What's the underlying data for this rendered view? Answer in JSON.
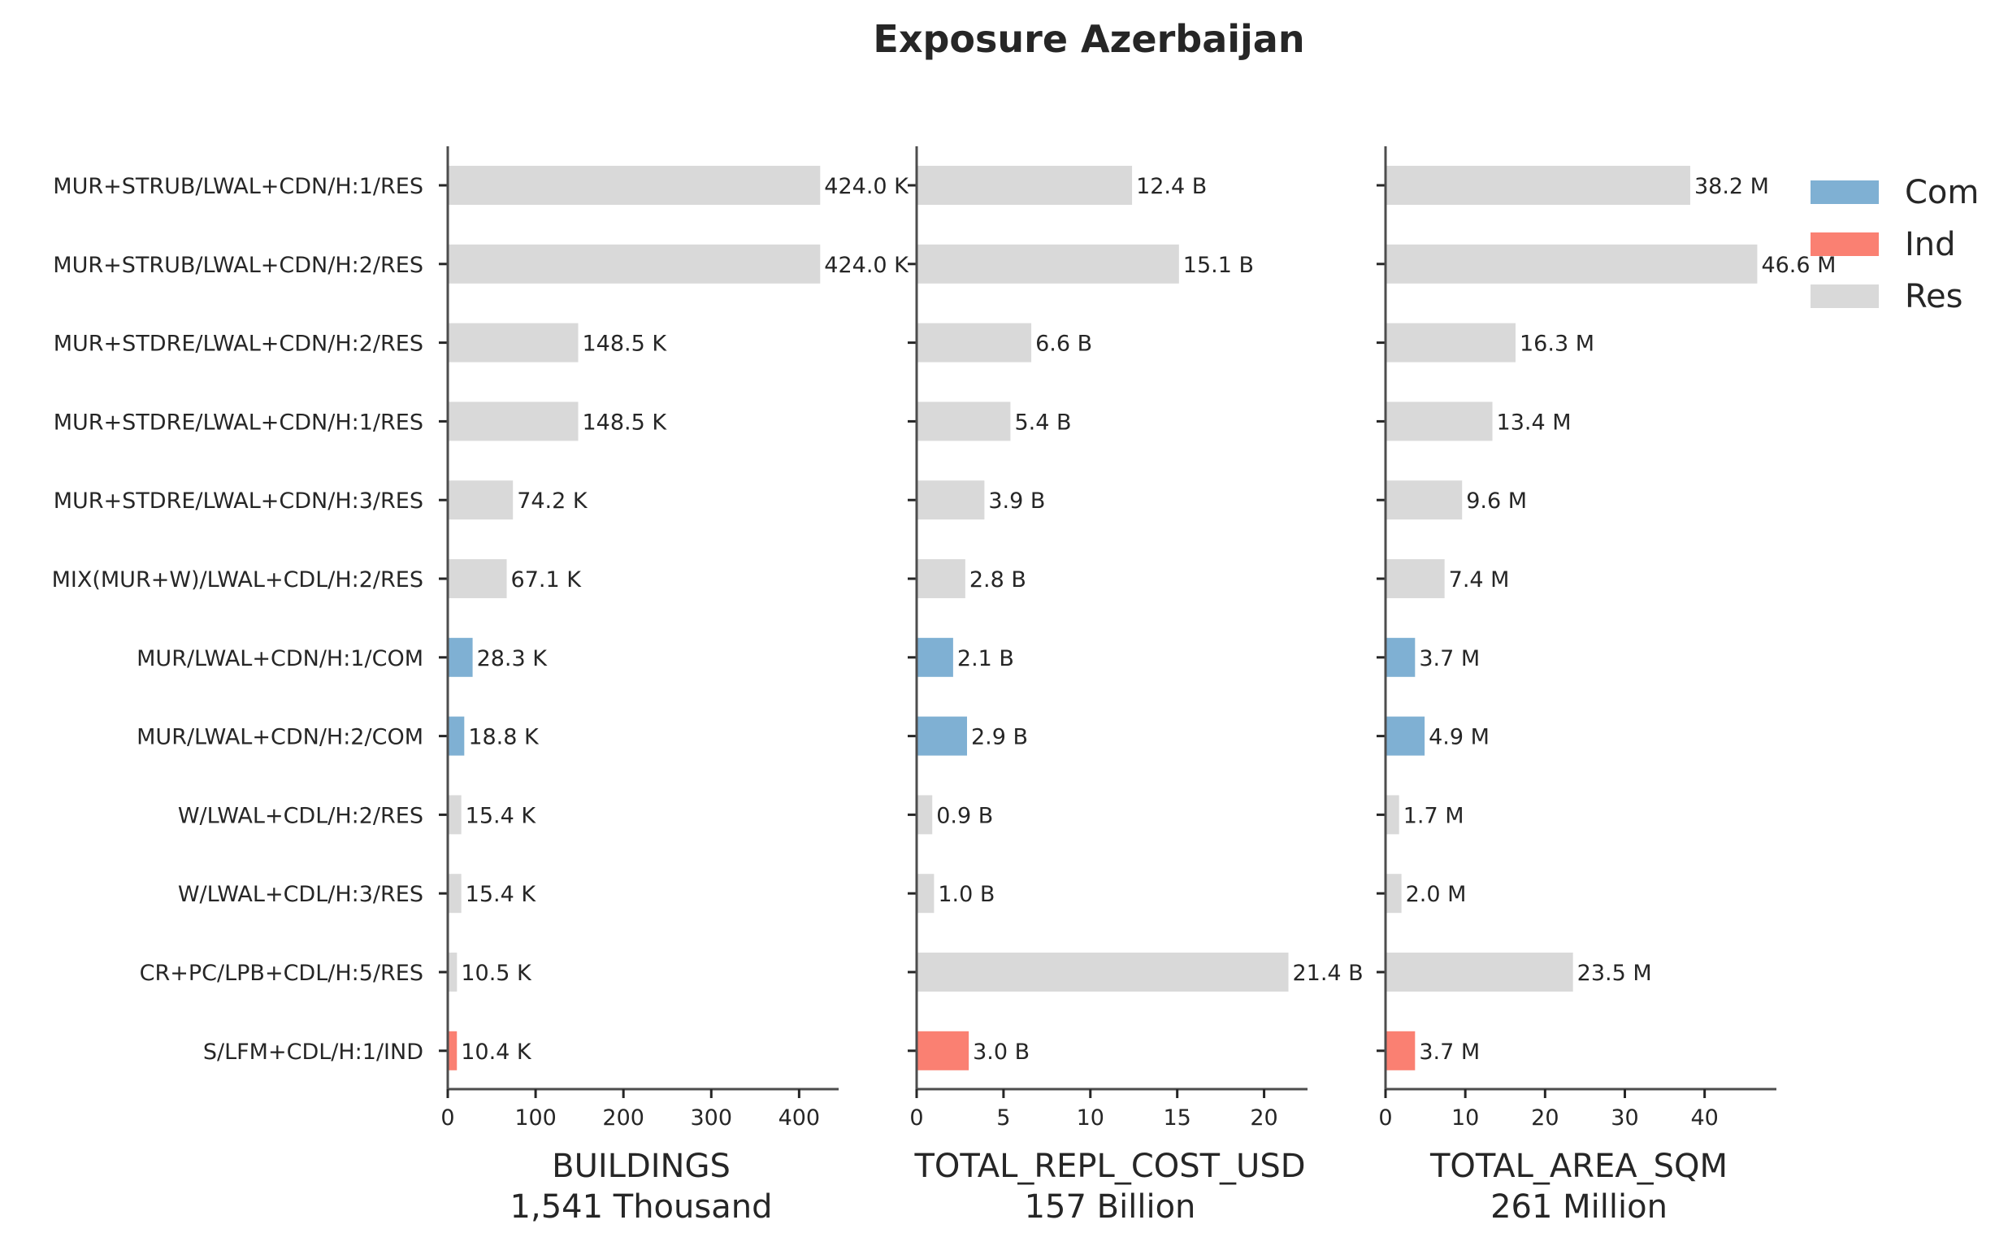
{
  "chart_data": {
    "type": "bar",
    "orientation": "horizontal",
    "title": "Exposure Azerbaijan",
    "categories": [
      "MUR+STRUB/LWAL+CDN/H:1/RES",
      "MUR+STRUB/LWAL+CDN/H:2/RES",
      "MUR+STDRE/LWAL+CDN/H:2/RES",
      "MUR+STDRE/LWAL+CDN/H:1/RES",
      "MUR+STDRE/LWAL+CDN/H:3/RES",
      "MIX(MUR+W)/LWAL+CDL/H:2/RES",
      "MUR/LWAL+CDN/H:1/COM",
      "MUR/LWAL+CDN/H:2/COM",
      "W/LWAL+CDL/H:2/RES",
      "W/LWAL+CDL/H:3/RES",
      "CR+PC/LPB+CDL/H:5/RES",
      "S/LFM+CDL/H:1/IND"
    ],
    "occupancy": [
      "Res",
      "Res",
      "Res",
      "Res",
      "Res",
      "Res",
      "Com",
      "Com",
      "Res",
      "Res",
      "Res",
      "Ind"
    ],
    "legend": {
      "placement": "top-right",
      "entries": [
        {
          "label": "Com",
          "color": "#7fb0d3"
        },
        {
          "label": "Ind",
          "color": "#fa8072"
        },
        {
          "label": "Res",
          "color": "#d9d9d9"
        }
      ]
    },
    "panels": [
      {
        "xlabel": "BUILDINGS",
        "total": "1,541 Thousand",
        "xlim": [
          0,
          445
        ],
        "ticks": [
          0,
          100,
          200,
          300,
          400
        ],
        "tick_labels": [
          "0",
          "100",
          "200",
          "300",
          "400"
        ],
        "values": [
          424.0,
          424.0,
          148.5,
          148.5,
          74.2,
          67.1,
          28.3,
          18.8,
          15.4,
          15.4,
          10.5,
          10.4
        ],
        "labels": [
          "424.0 K",
          "424.0 K",
          "148.5 K",
          "148.5 K",
          "74.2 K",
          "67.1 K",
          "28.3 K",
          "18.8 K",
          "15.4 K",
          "15.4 K",
          "10.5 K",
          "10.4 K"
        ]
      },
      {
        "xlabel": "TOTAL_REPL_COST_USD",
        "total": "157 Billion",
        "xlim": [
          0,
          22.5
        ],
        "ticks": [
          0,
          5,
          10,
          15,
          20
        ],
        "tick_labels": [
          "0",
          "5",
          "10",
          "15",
          "20"
        ],
        "values": [
          12.4,
          15.1,
          6.6,
          5.4,
          3.9,
          2.8,
          2.1,
          2.9,
          0.9,
          1.0,
          21.4,
          3.0
        ],
        "labels": [
          "12.4 B",
          "15.1 B",
          "6.6 B",
          "5.4 B",
          "3.9 B",
          "2.8 B",
          "2.1 B",
          "2.9 B",
          "0.9 B",
          "1.0 B",
          "21.4 B",
          "3.0 B"
        ]
      },
      {
        "xlabel": "TOTAL_AREA_SQM",
        "total": "261 Million",
        "xlim": [
          0,
          49
        ],
        "ticks": [
          0,
          10,
          20,
          30,
          40
        ],
        "tick_labels": [
          "0",
          "10",
          "20",
          "30",
          "40"
        ],
        "values": [
          38.2,
          46.6,
          16.3,
          13.4,
          9.6,
          7.4,
          3.7,
          4.9,
          1.7,
          2.0,
          23.5,
          3.7
        ],
        "labels": [
          "38.2 M",
          "46.6 M",
          "16.3 M",
          "13.4 M",
          "9.6 M",
          "7.4 M",
          "3.7 M",
          "4.9 M",
          "1.7 M",
          "2.0 M",
          "23.5 M",
          "3.7 M"
        ]
      }
    ]
  }
}
